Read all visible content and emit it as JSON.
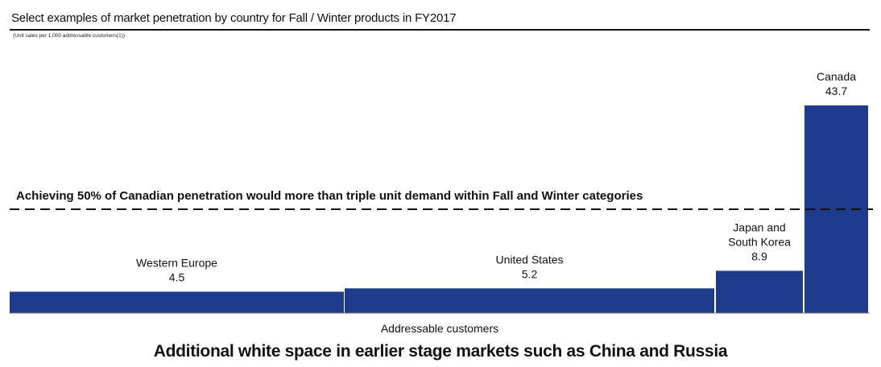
{
  "chart_data": {
    "type": "bar",
    "title": "Select examples of market penetration by country for Fall / Winter products in FY2017",
    "subtitle": "(Unit sales per 1,000 addressable customers(1))",
    "xlabel": "Addressable customers",
    "ylabel": "",
    "variable_width": true,
    "categories": [
      "Western Europe",
      "United States",
      "Japan and South Korea",
      "Canada"
    ],
    "category_label_lines": [
      [
        "Western Europe"
      ],
      [
        "United States"
      ],
      [
        "Japan and",
        "South Korea"
      ],
      [
        "Canada"
      ]
    ],
    "values": [
      4.5,
      5.2,
      8.9,
      43.7
    ],
    "value_labels": [
      "4.5",
      "5.2",
      "8.9",
      "43.7"
    ],
    "bar_color": "#1e3a8a",
    "reference_line": {
      "value": 21.85,
      "style": "dashed",
      "label": "Achieving 50% of Canadian penetration would more than triple unit demand within Fall and Winter categories"
    }
  },
  "footer": "Additional white space in earlier stage markets such as China and Russia"
}
